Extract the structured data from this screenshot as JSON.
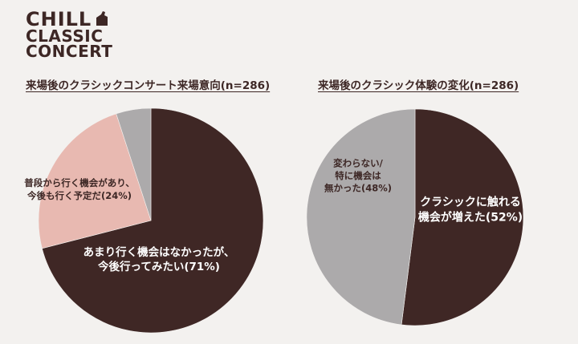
{
  "logo": {
    "line1": "CHILL",
    "line2": "CLASSIC",
    "line3": "CONCERT"
  },
  "colors": {
    "dark": "#3f2725",
    "pink": "#e8b9b1",
    "gray": "#acaaab",
    "text_dark": "#3d2725",
    "background": "#f3f1ef"
  },
  "chart_data": [
    {
      "type": "pie",
      "title": "来場後のクラシックコンサート来場意向(n=286)",
      "series": [
        {
          "values": [
            71,
            24,
            5
          ],
          "labels": [
            [
              "あまり行く機会はなかったが、",
              "今後行ってみたい(71%)"
            ],
            [
              "普段から行く機会があり、",
              "今後も行く予定だ(24%)"
            ],
            []
          ],
          "colors": [
            "#3f2725",
            "#e8b9b1",
            "#acaaab"
          ]
        }
      ]
    },
    {
      "type": "pie",
      "title": "来場後のクラシック体験の変化(n=286)",
      "series": [
        {
          "values": [
            52,
            48
          ],
          "labels": [
            [
              "クラシックに触れる",
              "機会が増えた(52%)"
            ],
            [
              "変わらない/",
              "特に機会は",
              "無かった(48%)"
            ]
          ],
          "colors": [
            "#3f2725",
            "#acaaab"
          ]
        }
      ]
    }
  ]
}
